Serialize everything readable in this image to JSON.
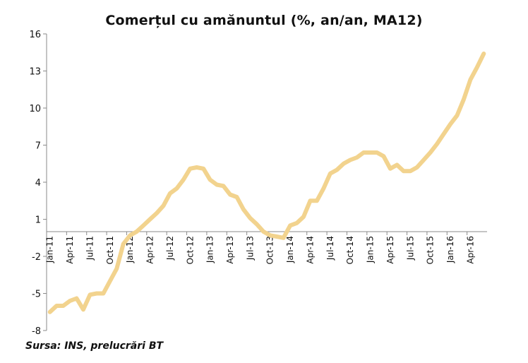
{
  "chart_data": {
    "type": "line",
    "title": "Comerțul cu amănuntul (%, an/an, MA12)",
    "xlabel": "",
    "ylabel": "",
    "ylim": [
      -8,
      16
    ],
    "yticks": [
      -8,
      -5,
      -2,
      1,
      4,
      7,
      10,
      13,
      16
    ],
    "x_tick_labels": [
      "Jan-11",
      "Apr-11",
      "Jul-11",
      "Oct-11",
      "Jan-12",
      "Apr-12",
      "Jul-12",
      "Oct-12",
      "Jan-13",
      "Apr-13",
      "Jul-13",
      "Oct-13",
      "Jan-14",
      "Apr-14",
      "Jul-14",
      "Oct-14",
      "Jan-15",
      "Apr-15",
      "Jul-15",
      "Oct-15",
      "Jan-16",
      "Apr-16"
    ],
    "grid": false,
    "legend": "none",
    "line_color": "#F2D38E",
    "series": [
      {
        "values": [
          -6.5,
          -6.0,
          -6.0,
          -5.6,
          -5.4,
          -6.3,
          -5.1,
          -5.0,
          -5.0,
          -4.0,
          -3.0,
          -1.0,
          -0.3,
          0.0,
          0.5,
          1.0,
          1.5,
          2.1,
          3.1,
          3.5,
          4.2,
          5.1,
          5.2,
          5.1,
          4.2,
          3.8,
          3.7,
          3.0,
          2.8,
          1.8,
          1.1,
          0.6,
          0.0,
          -0.3,
          -0.4,
          -0.5,
          0.5,
          0.7,
          1.2,
          2.5,
          2.5,
          3.5,
          4.7,
          5.0,
          5.5,
          5.8,
          6.0,
          6.4,
          6.4,
          6.4,
          6.1,
          5.1,
          5.4,
          4.9,
          4.9,
          5.2,
          5.8,
          6.4,
          7.1,
          7.9,
          8.7,
          9.4,
          10.7,
          12.3,
          13.3,
          14.4
        ]
      }
    ]
  },
  "source_text": "Sursa: INS, prelucrări BT"
}
